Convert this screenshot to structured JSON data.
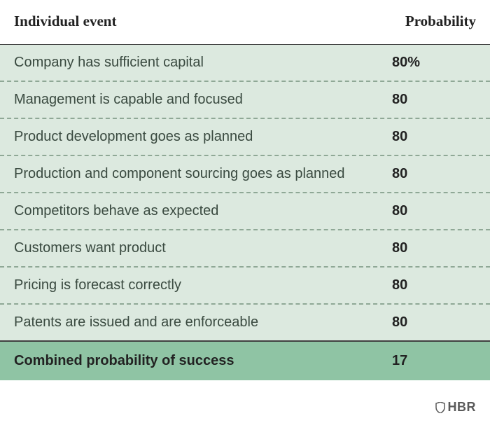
{
  "header": {
    "event_label": "Individual event",
    "prob_label": "Probability"
  },
  "rows": [
    {
      "event": "Company has sufficient capital",
      "prob": "80%"
    },
    {
      "event": "Management is capable and focused",
      "prob": "80"
    },
    {
      "event": "Product development goes as planned",
      "prob": "80"
    },
    {
      "event": "Production and component sourcing goes as planned",
      "prob": "80"
    },
    {
      "event": "Competitors behave as expected",
      "prob": "80"
    },
    {
      "event": "Customers want product",
      "prob": "80"
    },
    {
      "event": "Pricing is forecast correctly",
      "prob": "80"
    },
    {
      "event": "Patents are issued and are enforceable",
      "prob": "80"
    }
  ],
  "total": {
    "event": "Combined probability of success",
    "prob": "17"
  },
  "footer": {
    "logo_text": "HBR"
  },
  "style": {
    "row_bg": "#dce9df",
    "total_bg": "#8fc4a4",
    "dash_color": "#8fa896",
    "header_border": "#404040",
    "text_color": "#3a4a40",
    "bold_text_color": "#222222",
    "logo_color": "#5a5a5a"
  }
}
